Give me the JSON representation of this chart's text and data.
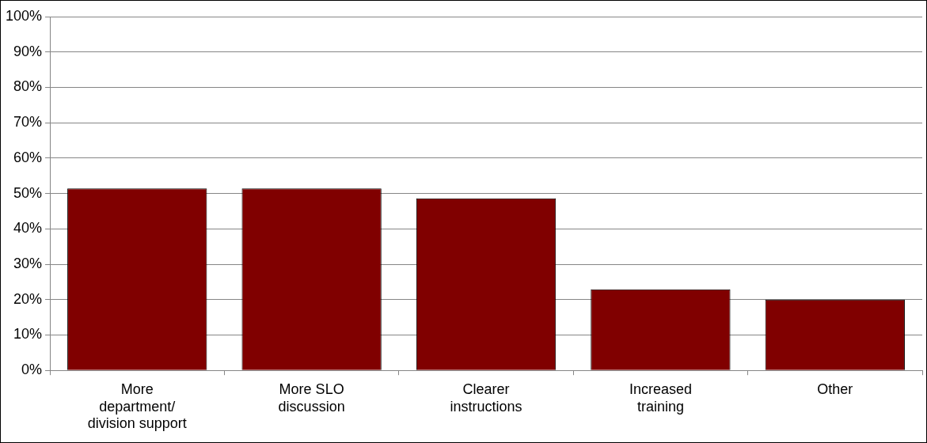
{
  "chart_data": {
    "type": "bar",
    "categories": [
      "More department/ division support",
      "More SLO discussion",
      "Clearer instructions",
      "Increased training",
      "Other"
    ],
    "values": [
      51.4,
      51.4,
      48.6,
      22.9,
      20.0
    ],
    "color": "#800000",
    "ylim": [
      0,
      100
    ],
    "yticks": [
      {
        "value": 0,
        "label": "0%"
      },
      {
        "value": 10,
        "label": "10%"
      },
      {
        "value": 20,
        "label": "20%"
      },
      {
        "value": 30,
        "label": "30%"
      },
      {
        "value": 40,
        "label": "40%"
      },
      {
        "value": 50,
        "label": "50%"
      },
      {
        "value": 60,
        "label": "60%"
      },
      {
        "value": 70,
        "label": "70%"
      },
      {
        "value": 80,
        "label": "80%"
      },
      {
        "value": 90,
        "label": "90%"
      },
      {
        "value": 100,
        "label": "100%"
      }
    ],
    "grid": "y",
    "legend": false
  }
}
